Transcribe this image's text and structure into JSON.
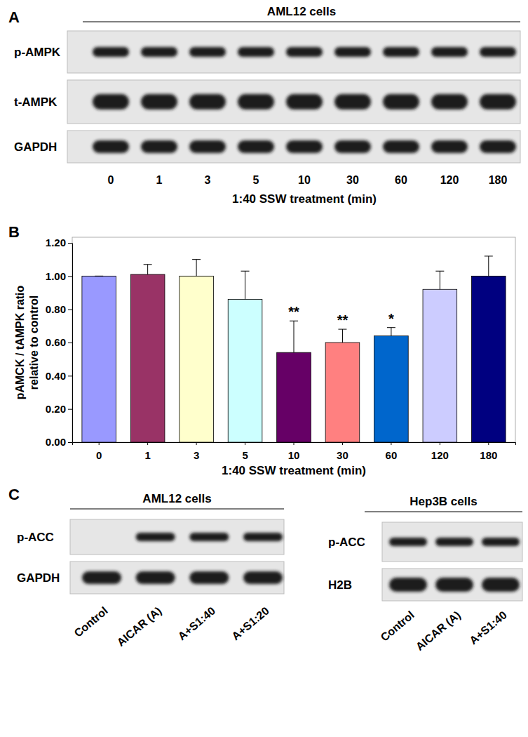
{
  "panel_labels": [
    "A",
    "B",
    "C"
  ],
  "panel_a": {
    "title": "AML12 cells",
    "rows": [
      {
        "label": "p-AMPK",
        "bands": [
          true,
          true,
          true,
          true,
          true,
          true,
          true,
          true,
          true
        ]
      },
      {
        "label": "t-AMPK",
        "bands": [
          true,
          true,
          true,
          true,
          true,
          true,
          true,
          true,
          true
        ]
      },
      {
        "label": "GAPDH",
        "bands": [
          true,
          true,
          true,
          true,
          true,
          true,
          true,
          true,
          true
        ]
      }
    ],
    "lanes": [
      "0",
      "1",
      "3",
      "5",
      "10",
      "30",
      "60",
      "120",
      "180"
    ],
    "x_label": "1:40 SSW treatment (min)"
  },
  "chart_data": {
    "type": "bar",
    "categories": [
      "0",
      "1",
      "3",
      "5",
      "10",
      "30",
      "60",
      "120",
      "180"
    ],
    "values": [
      1.0,
      1.01,
      1.0,
      0.86,
      0.54,
      0.6,
      0.64,
      0.92,
      1.0
    ],
    "errors": [
      0.0,
      0.06,
      0.1,
      0.17,
      0.19,
      0.08,
      0.05,
      0.11,
      0.12
    ],
    "colors": [
      "#9999ff",
      "#993366",
      "#ffffcc",
      "#ccffff",
      "#660066",
      "#ff8080",
      "#0066cc",
      "#ccccff",
      "#000080"
    ],
    "ylim": [
      0,
      1.2
    ],
    "yticks": [
      {
        "value": 0,
        "label": "0.00"
      },
      {
        "value": 0.2,
        "label": "0.20"
      },
      {
        "value": 0.4,
        "label": "0.40"
      },
      {
        "value": 0.6,
        "label": "0.60"
      },
      {
        "value": 0.8,
        "label": "0.80"
      },
      {
        "value": 1.0,
        "label": "1.00"
      },
      {
        "value": 1.2,
        "label": "1.20"
      }
    ],
    "x_label": "1:40 SSW treatment (min)",
    "y_label": [
      "pAMCK / tAMPK ratio",
      "relative to control"
    ],
    "annotations": [
      {
        "category": "10",
        "text": "**"
      },
      {
        "category": "30",
        "text": "**"
      },
      {
        "category": "60",
        "text": "*"
      }
    ],
    "grid": false
  },
  "panel_c": {
    "blots": [
      {
        "title": "AML12  cells",
        "rows": [
          {
            "label": "p-ACC",
            "bands": [
              false,
              true,
              true,
              true
            ]
          },
          {
            "label": "GAPDH",
            "bands": [
              true,
              true,
              true,
              true
            ]
          }
        ],
        "lanes": [
          "Control",
          "AICAR (A)",
          "A+S1:40",
          "A+S1:20"
        ]
      },
      {
        "title": "Hep3B cells",
        "rows": [
          {
            "label": "p-ACC",
            "bands": [
              true,
              true,
              true
            ]
          },
          {
            "label": "H2B",
            "bands": [
              true,
              true,
              true
            ]
          }
        ],
        "lanes": [
          "Control",
          "AICAR (A)",
          "A+S1:40"
        ]
      }
    ]
  }
}
